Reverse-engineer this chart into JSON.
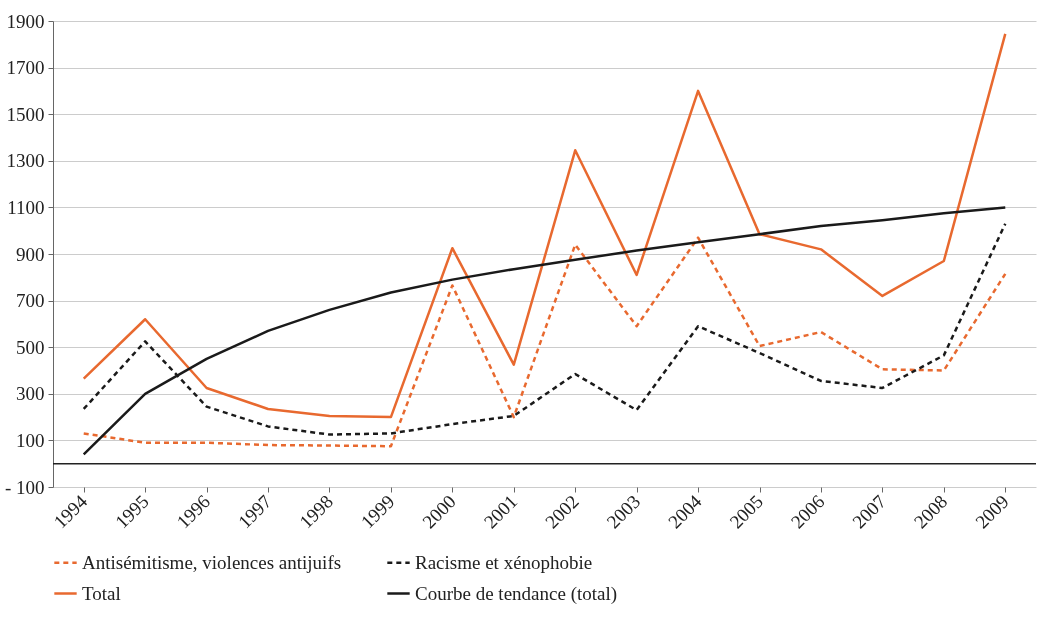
{
  "chart_data": {
    "type": "line",
    "categories": [
      "1994",
      "1995",
      "1996",
      "1997",
      "1998",
      "1999",
      "2000",
      "2001",
      "2002",
      "2003",
      "2004",
      "2005",
      "2006",
      "2007",
      "2008",
      "2009"
    ],
    "series": [
      {
        "name": "Antisémitisme, violences antijuifs",
        "color": "#e8692f",
        "line_style": "dashed",
        "values": [
          130,
          90,
          90,
          80,
          78,
          75,
          765,
          200,
          940,
          590,
          970,
          505,
          565,
          405,
          400,
          815
        ]
      },
      {
        "name": "Racisme et xénophobie",
        "color": "#1a1a1a",
        "line_style": "dashed",
        "values": [
          235,
          525,
          245,
          160,
          125,
          130,
          170,
          205,
          385,
          230,
          590,
          475,
          355,
          325,
          465,
          1030
        ]
      },
      {
        "name": "Total",
        "color": "#e8692f",
        "line_style": "solid",
        "values": [
          365,
          620,
          325,
          235,
          205,
          200,
          925,
          425,
          1345,
          810,
          1600,
          985,
          920,
          720,
          870,
          1845
        ]
      },
      {
        "name": "Courbe de tendance (total)",
        "color": "#1a1a1a",
        "line_style": "solid",
        "values": [
          40,
          300,
          450,
          570,
          660,
          735,
          790,
          835,
          875,
          915,
          950,
          985,
          1020,
          1045,
          1075,
          1100
        ]
      }
    ],
    "ylim": [
      -100,
      1900
    ],
    "yticks": [
      {
        "value": -100,
        "label": "- 100"
      },
      100,
      300,
      500,
      700,
      900,
      1100,
      1300,
      1500,
      1700,
      1900
    ],
    "ref_lines": [
      {
        "axis": "y",
        "value": 0,
        "color": "#222222"
      }
    ],
    "grid": "y",
    "legend": "bottom",
    "marker": "none"
  }
}
